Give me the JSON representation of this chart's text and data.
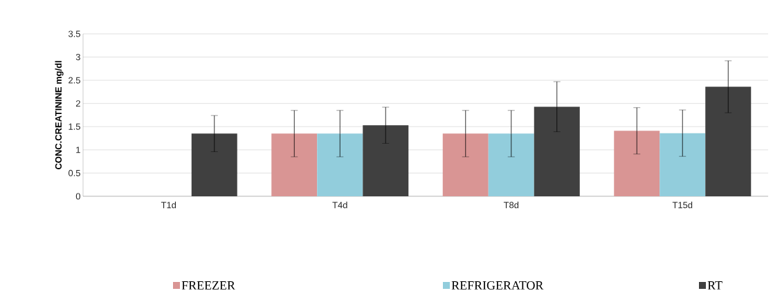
{
  "chart_data": {
    "type": "bar",
    "ylabel": "CONC.CREATININE mg/dl",
    "categories": [
      "T1d",
      "T4d",
      "T8d",
      "T15d"
    ],
    "series": [
      {
        "name": "FREEZER",
        "color": "#d99594",
        "values": [
          null,
          1.35,
          1.35,
          1.41
        ],
        "errors": [
          null,
          0.5,
          0.5,
          0.5
        ]
      },
      {
        "name": "REFRIGERATOR",
        "color": "#92cddc",
        "values": [
          null,
          1.35,
          1.35,
          1.36
        ],
        "errors": [
          null,
          0.5,
          0.5,
          0.5
        ]
      },
      {
        "name": "RT",
        "color": "#404040",
        "values": [
          1.35,
          1.53,
          1.93,
          2.36
        ],
        "errors": [
          0.39,
          0.39,
          0.54,
          0.56
        ]
      }
    ],
    "ylim": [
      0,
      3.5
    ],
    "yticks": [
      0,
      0.5,
      1,
      1.5,
      2,
      2.5,
      3,
      3.5
    ],
    "grid": "y",
    "legend": "bottom"
  }
}
